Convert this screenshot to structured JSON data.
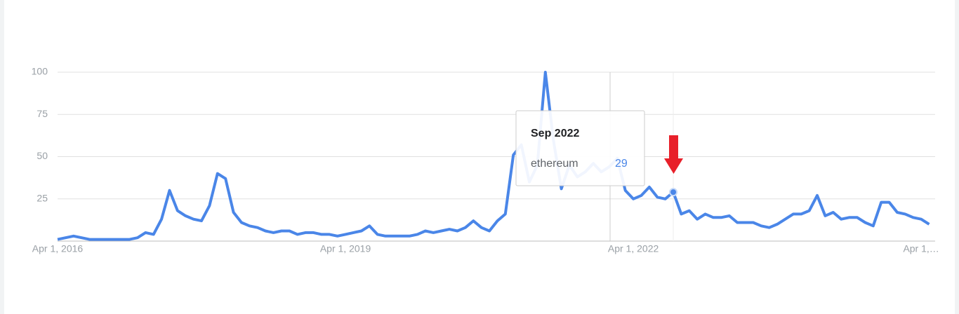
{
  "chart_data": {
    "type": "line",
    "categories": [
      "Apr 1, 2016",
      null,
      null,
      null,
      null,
      null,
      null,
      null,
      null,
      null,
      null,
      null,
      null,
      null,
      null,
      null,
      null,
      null,
      null,
      null,
      null,
      null,
      null,
      null,
      null,
      null,
      null,
      null,
      null,
      null,
      null,
      null,
      null,
      null,
      null,
      null,
      "Apr 1, 2019",
      null,
      null,
      null,
      null,
      null,
      null,
      null,
      null,
      null,
      null,
      null,
      null,
      null,
      null,
      null,
      null,
      null,
      null,
      null,
      null,
      null,
      null,
      null,
      null,
      null,
      null,
      null,
      null,
      null,
      null,
      null,
      null,
      null,
      null,
      null,
      "Apr 1, 2022",
      null,
      null,
      null,
      null,
      null,
      null,
      null,
      null,
      null,
      null,
      null,
      null,
      null,
      null,
      null,
      null,
      null,
      null,
      null,
      null,
      null,
      null,
      null,
      null,
      null,
      null,
      null,
      null,
      null,
      null,
      null,
      null,
      null,
      null,
      null,
      "Apr 1,…",
      null
    ],
    "series": [
      {
        "name": "ethereum",
        "color": "#4a86e8",
        "values": [
          1,
          2,
          3,
          2,
          1,
          1,
          1,
          1,
          1,
          1,
          2,
          5,
          4,
          13,
          30,
          18,
          15,
          13,
          12,
          21,
          40,
          37,
          17,
          11,
          9,
          8,
          6,
          5,
          6,
          6,
          4,
          5,
          5,
          4,
          4,
          3,
          4,
          5,
          6,
          9,
          4,
          3,
          3,
          3,
          3,
          4,
          6,
          5,
          6,
          7,
          6,
          8,
          12,
          8,
          6,
          12,
          16,
          51,
          57,
          35,
          45,
          100,
          60,
          31,
          45,
          38,
          41,
          46,
          41,
          44,
          49,
          30,
          25,
          27,
          32,
          26,
          25,
          29,
          16,
          18,
          13,
          16,
          14,
          14,
          15,
          11,
          11,
          11,
          9,
          8,
          10,
          13,
          16,
          16,
          18,
          27,
          15,
          17,
          13,
          14,
          14,
          11,
          9,
          23,
          23,
          17,
          16,
          14,
          13,
          10
        ]
      }
    ],
    "ylim": [
      0,
      100
    ],
    "yticks": [
      25,
      50,
      75,
      100
    ],
    "grid": true,
    "tooltip": {
      "title": "Sep 2022",
      "series": "ethereum",
      "value": 29
    }
  }
}
